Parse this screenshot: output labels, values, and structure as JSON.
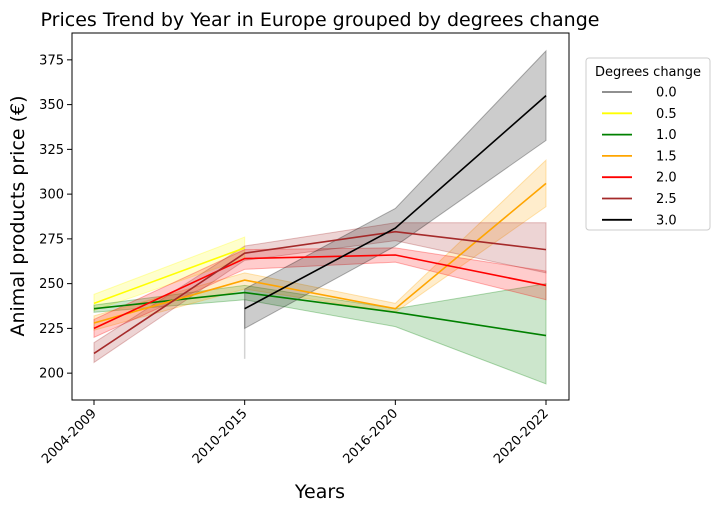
{
  "chart_data": {
    "type": "line",
    "title": "Prices Trend by Year in Europe grouped by degrees change",
    "xlabel": "Years",
    "ylabel": "Animal products price (€)",
    "categories": [
      "2004-2009",
      "2010-2015",
      "2016-2020",
      "2020-2022"
    ],
    "yticks": [
      200,
      225,
      250,
      275,
      300,
      325,
      350,
      375
    ],
    "ylim": [
      185,
      390
    ],
    "grid": false,
    "legend": {
      "title": "Degrees change",
      "placement": "upper right, outside plot"
    },
    "series": [
      {
        "name": "0.0",
        "color": "#808080",
        "values": [
          null,
          null,
          null,
          null
        ],
        "lower": [
          null,
          208,
          null,
          null
        ],
        "upper": [
          null,
          241,
          null,
          null
        ]
      },
      {
        "name": "0.5",
        "color": "#ffff00",
        "values": [
          239,
          270,
          null,
          null
        ],
        "lower": [
          235,
          264,
          null,
          null
        ],
        "upper": [
          244,
          276,
          null,
          null
        ]
      },
      {
        "name": "1.0",
        "color": "#008000",
        "values": [
          236,
          245,
          234,
          221
        ],
        "lower": [
          234,
          241,
          226,
          194
        ],
        "upper": [
          238,
          249,
          236,
          250
        ]
      },
      {
        "name": "1.5",
        "color": "#ffa500",
        "values": [
          228,
          252,
          236,
          306
        ],
        "lower": [
          224,
          247,
          234,
          293
        ],
        "upper": [
          232,
          256,
          239,
          319
        ]
      },
      {
        "name": "2.0",
        "color": "#ff0000",
        "values": [
          225,
          264,
          266,
          249
        ],
        "lower": [
          220,
          258,
          262,
          241
        ],
        "upper": [
          230,
          269,
          270,
          257
        ]
      },
      {
        "name": "2.5",
        "color": "#a52a2a",
        "values": [
          211,
          267,
          279,
          269
        ],
        "lower": [
          206,
          263,
          274,
          256
        ],
        "upper": [
          217,
          271,
          284,
          284
        ]
      },
      {
        "name": "3.0",
        "color": "#000000",
        "values": [
          null,
          236,
          281,
          355
        ],
        "lower": [
          null,
          225,
          271,
          330
        ],
        "upper": [
          null,
          247,
          292,
          380
        ]
      }
    ]
  }
}
